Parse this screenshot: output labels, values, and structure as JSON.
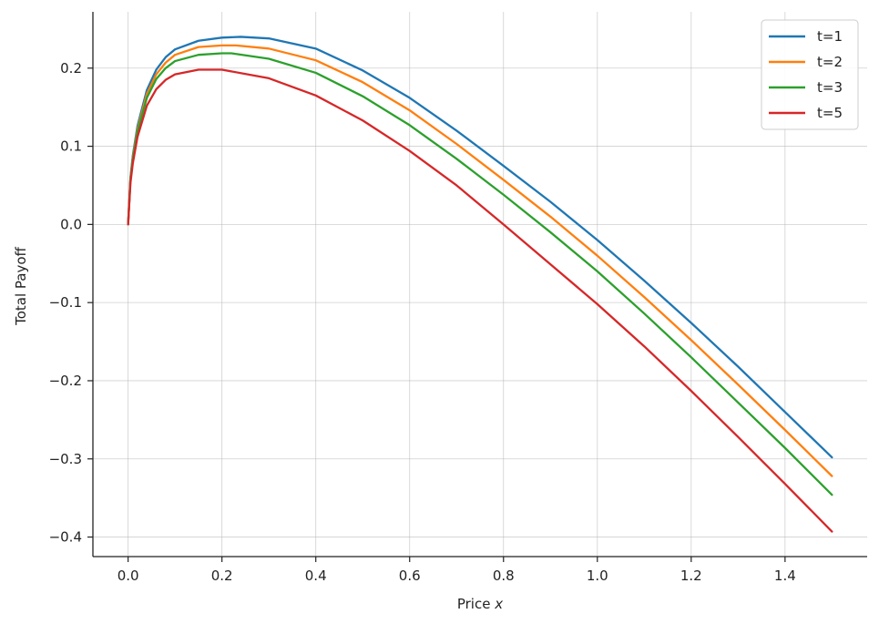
{
  "chart_data": {
    "type": "line",
    "title": "",
    "xlabel": "Price",
    "xlabel_var": "x",
    "ylabel": "Total Payoff",
    "xlim": [
      -0.075,
      1.575
    ],
    "ylim": [
      -0.425,
      0.272
    ],
    "xticks": [
      0.0,
      0.2,
      0.4,
      0.6,
      0.8,
      1.0,
      1.2,
      1.4
    ],
    "xtick_labels": [
      "0.0",
      "0.2",
      "0.4",
      "0.6",
      "0.8",
      "1.0",
      "1.2",
      "1.4"
    ],
    "yticks": [
      0.2,
      0.1,
      0.0,
      -0.1,
      -0.2,
      -0.3,
      -0.4
    ],
    "ytick_labels": [
      "0.2",
      "0.1",
      "0.0",
      "−0.1",
      "−0.2",
      "−0.3",
      "−0.4"
    ],
    "grid": true,
    "legend_position": "top-right",
    "series": [
      {
        "name": "t=1",
        "color": "#1f77b4",
        "x": [
          0.0,
          0.005,
          0.01,
          0.02,
          0.04,
          0.06,
          0.08,
          0.1,
          0.15,
          0.2,
          0.24,
          0.3,
          0.4,
          0.5,
          0.6,
          0.7,
          0.8,
          0.9,
          1.0,
          1.1,
          1.2,
          1.3,
          1.4,
          1.5
        ],
        "y": [
          0.0,
          0.06,
          0.088,
          0.126,
          0.172,
          0.198,
          0.214,
          0.224,
          0.235,
          0.239,
          0.24,
          0.238,
          0.225,
          0.197,
          0.162,
          0.12,
          0.075,
          0.029,
          -0.02,
          -0.072,
          -0.126,
          -0.182,
          -0.24,
          -0.298
        ]
      },
      {
        "name": "t=2",
        "color": "#ff7f0e",
        "x": [
          0.0,
          0.005,
          0.01,
          0.02,
          0.04,
          0.06,
          0.08,
          0.1,
          0.15,
          0.2,
          0.23,
          0.3,
          0.4,
          0.5,
          0.6,
          0.7,
          0.8,
          0.9,
          1.0,
          1.1,
          1.2,
          1.3,
          1.4,
          1.5
        ],
        "y": [
          0.0,
          0.058,
          0.085,
          0.122,
          0.167,
          0.192,
          0.207,
          0.217,
          0.227,
          0.229,
          0.229,
          0.225,
          0.21,
          0.182,
          0.146,
          0.103,
          0.057,
          0.01,
          -0.04,
          -0.093,
          -0.148,
          -0.205,
          -0.263,
          -0.322
        ]
      },
      {
        "name": "t=3",
        "color": "#2ca02c",
        "x": [
          0.0,
          0.005,
          0.01,
          0.02,
          0.04,
          0.06,
          0.08,
          0.1,
          0.15,
          0.2,
          0.22,
          0.3,
          0.4,
          0.5,
          0.6,
          0.7,
          0.8,
          0.9,
          1.0,
          1.1,
          1.2,
          1.3,
          1.4,
          1.5
        ],
        "y": [
          0.0,
          0.057,
          0.083,
          0.119,
          0.162,
          0.186,
          0.2,
          0.209,
          0.217,
          0.219,
          0.219,
          0.212,
          0.194,
          0.164,
          0.127,
          0.084,
          0.038,
          -0.01,
          -0.06,
          -0.114,
          -0.17,
          -0.228,
          -0.286,
          -0.346
        ]
      },
      {
        "name": "t=5",
        "color": "#d62728",
        "x": [
          0.0,
          0.005,
          0.01,
          0.02,
          0.04,
          0.06,
          0.08,
          0.1,
          0.15,
          0.2,
          0.3,
          0.4,
          0.5,
          0.6,
          0.7,
          0.8,
          0.9,
          1.0,
          1.1,
          1.2,
          1.3,
          1.4,
          1.5
        ],
        "y": [
          0.0,
          0.053,
          0.078,
          0.112,
          0.152,
          0.173,
          0.185,
          0.192,
          0.198,
          0.198,
          0.187,
          0.165,
          0.133,
          0.094,
          0.05,
          0.0,
          -0.051,
          -0.102,
          -0.156,
          -0.213,
          -0.272,
          -0.332,
          -0.393
        ]
      }
    ]
  }
}
